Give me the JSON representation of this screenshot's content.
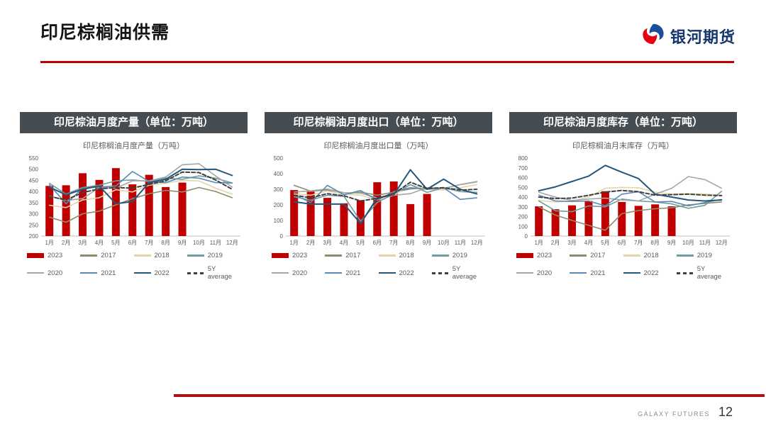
{
  "slide": {
    "title": "印尼棕榈油供需",
    "logo_text": "银河期货",
    "footer_brand": "GALAXY FUTURES",
    "page_number": "12"
  },
  "colors": {
    "accent_red": "#C00000",
    "bottom_rule_red": "#B01014",
    "header_bar": "#454D52",
    "logo_blue": "#15366B",
    "logo_swirl_blue": "#1B4E9B",
    "logo_swirl_red": "#E60012",
    "axis_text": "#595959",
    "axis_line": "#BFBFBF"
  },
  "chart_data": [
    {
      "name": "production",
      "type": "bar+line",
      "header": "印尼棕油月度产量（单位：万吨）",
      "subtitle": "印尼棕榈油月度产量（万吨）",
      "ylim": [
        200,
        550
      ],
      "yticks": [
        200,
        250,
        300,
        350,
        400,
        450,
        500,
        550
      ],
      "grid": false,
      "legend_position": "bottom",
      "categories": [
        "1月",
        "2月",
        "3月",
        "4月",
        "5月",
        "6月",
        "7月",
        "8月",
        "9月",
        "10月",
        "11月",
        "12月"
      ],
      "bars": {
        "name": "2023",
        "color": "#C00000",
        "values": [
          425,
          428,
          482,
          452,
          505,
          432,
          475,
          420,
          440,
          null,
          null,
          null
        ]
      },
      "series": [
        {
          "name": "2017",
          "color": "#8E8C6D",
          "dash": false,
          "values": [
            285,
            262,
            300,
            312,
            340,
            368,
            390,
            405,
            398,
            418,
            400,
            372
          ]
        },
        {
          "name": "2018",
          "color": "#E3D5A8",
          "dash": false,
          "values": [
            338,
            328,
            362,
            372,
            408,
            398,
            428,
            438,
            450,
            448,
            415,
            388
          ]
        },
        {
          "name": "2019",
          "color": "#6D9E9E",
          "dash": false,
          "values": [
            437,
            388,
            418,
            428,
            448,
            452,
            445,
            460,
            455,
            470,
            460,
            438
          ]
        },
        {
          "name": "2020",
          "color": "#A6A6A6",
          "dash": false,
          "values": [
            380,
            360,
            368,
            418,
            415,
            448,
            448,
            465,
            520,
            525,
            470,
            420
          ]
        },
        {
          "name": "2021",
          "color": "#5B89B4",
          "dash": false,
          "values": [
            430,
            345,
            415,
            420,
            425,
            490,
            445,
            440,
            465,
            460,
            440,
            438
          ]
        },
        {
          "name": "2022",
          "color": "#25567B",
          "dash": false,
          "values": [
            420,
            385,
            410,
            425,
            345,
            355,
            440,
            455,
            500,
            498,
            500,
            472
          ]
        },
        {
          "name": "5Y average",
          "color": "#404040",
          "dash": true,
          "values": [
            378,
            362,
            395,
            412,
            418,
            415,
            432,
            448,
            487,
            485,
            452,
            410
          ]
        }
      ]
    },
    {
      "name": "export",
      "type": "bar+line",
      "header": "印尼棕榈油月度出口（单位：万吨）",
      "subtitle": "印尼棕榈油月度出口量（万吨）",
      "ylim": [
        0,
        500
      ],
      "yticks": [
        0,
        100,
        200,
        300,
        400,
        500
      ],
      "grid": false,
      "legend_position": "bottom",
      "categories": [
        "1月",
        "2月",
        "3月",
        "4月",
        "5月",
        "6月",
        "7月",
        "8月",
        "9月",
        "10月",
        "11月",
        "12月"
      ],
      "bars": {
        "name": "2023",
        "color": "#C00000",
        "values": [
          295,
          285,
          245,
          210,
          230,
          345,
          350,
          205,
          270,
          null,
          null,
          null
        ]
      },
      "series": [
        {
          "name": "2017",
          "color": "#8E8C6D",
          "dash": false,
          "values": [
            325,
            288,
            295,
            268,
            282,
            262,
            282,
            302,
            310,
            305,
            330,
            348
          ]
        },
        {
          "name": "2018",
          "color": "#E3D5A8",
          "dash": false,
          "values": [
            270,
            262,
            288,
            270,
            262,
            230,
            262,
            330,
            300,
            295,
            310,
            330
          ]
        },
        {
          "name": "2019",
          "color": "#6D9E9E",
          "dash": false,
          "values": [
            252,
            230,
            262,
            255,
            95,
            215,
            270,
            330,
            280,
            310,
            285,
            280
          ]
        },
        {
          "name": "2020",
          "color": "#A6A6A6",
          "dash": false,
          "values": [
            282,
            290,
            302,
            278,
            275,
            245,
            262,
            272,
            310,
            305,
            330,
            350
          ]
        },
        {
          "name": "2021",
          "color": "#5B89B4",
          "dash": false,
          "values": [
            265,
            215,
            325,
            265,
            292,
            230,
            285,
            310,
            300,
            310,
            235,
            245
          ]
        },
        {
          "name": "2022",
          "color": "#25567B",
          "dash": false,
          "values": [
            220,
            205,
            205,
            205,
            80,
            245,
            265,
            425,
            300,
            365,
            300,
            270
          ]
        },
        {
          "name": "5Y average",
          "color": "#404040",
          "dash": true,
          "values": [
            262,
            245,
            272,
            258,
            225,
            242,
            272,
            345,
            305,
            310,
            295,
            300
          ]
        }
      ]
    },
    {
      "name": "inventory",
      "type": "bar+line",
      "header": "印尼棕油月度库存（单位：万吨）",
      "subtitle": "印尼棕榈油月末库存（万吨）",
      "ylim": [
        0,
        800
      ],
      "yticks": [
        0,
        100,
        200,
        300,
        400,
        500,
        600,
        700,
        800
      ],
      "grid": false,
      "legend_position": "bottom",
      "categories": [
        "1月",
        "2月",
        "3月",
        "4月",
        "5月",
        "6月",
        "7月",
        "8月",
        "9月",
        "10月",
        "11月",
        "12月"
      ],
      "bars": {
        "name": "2023",
        "color": "#C00000",
        "values": [
          305,
          275,
          315,
          360,
          460,
          350,
          310,
          325,
          305,
          null,
          null,
          null
        ]
      },
      "series": [
        {
          "name": "2017",
          "color": "#8E8C6D",
          "dash": false,
          "values": [
            300,
            215,
            160,
            110,
            60,
            230,
            262,
            280,
            290,
            320,
            335,
            350
          ]
        },
        {
          "name": "2018",
          "color": "#E3D5A8",
          "dash": false,
          "values": [
            365,
            350,
            360,
            400,
            490,
            500,
            495,
            450,
            430,
            435,
            430,
            420
          ]
        },
        {
          "name": "2019",
          "color": "#6D9E9E",
          "dash": false,
          "values": [
            360,
            260,
            250,
            310,
            300,
            380,
            360,
            350,
            330,
            285,
            315,
            460
          ]
        },
        {
          "name": "2020",
          "color": "#A6A6A6",
          "dash": false,
          "values": [
            450,
            400,
            365,
            380,
            390,
            370,
            360,
            430,
            490,
            610,
            580,
            490
          ]
        },
        {
          "name": "2021",
          "color": "#5B89B4",
          "dash": false,
          "values": [
            420,
            360,
            355,
            360,
            310,
            430,
            455,
            350,
            355,
            310,
            345,
            375
          ]
        },
        {
          "name": "2022",
          "color": "#25567B",
          "dash": false,
          "values": [
            465,
            505,
            560,
            615,
            725,
            655,
            590,
            430,
            400,
            370,
            360,
            370
          ]
        },
        {
          "name": "5Y average",
          "color": "#404040",
          "dash": true,
          "values": [
            400,
            385,
            390,
            418,
            452,
            468,
            455,
            420,
            425,
            430,
            420,
            415
          ]
        }
      ]
    }
  ]
}
